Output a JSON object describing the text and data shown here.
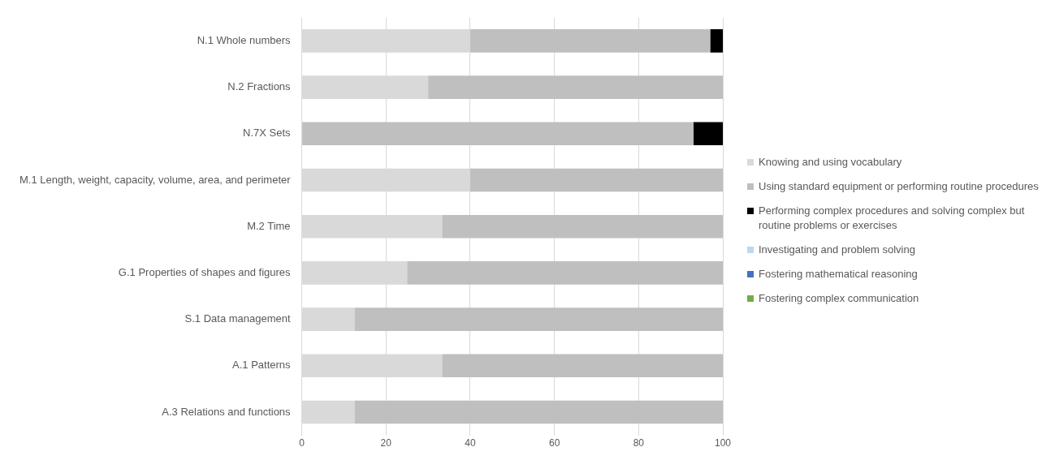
{
  "chart_data": {
    "type": "bar",
    "orientation": "horizontal",
    "stacked": true,
    "categories": [
      "N.1 Whole numbers",
      "N.2 Fractions",
      "N.7X Sets",
      "M.1 Length, weight, capacity, volume, area, and perimeter",
      "M.2 Time",
      "G.1 Properties of shapes and figures",
      "S.1 Data management",
      "A.1 Patterns",
      "A.3 Relations and functions"
    ],
    "series": [
      {
        "name": "Knowing and using vocabulary",
        "color": "#d9d9d9",
        "values": [
          40,
          30,
          0,
          40,
          33.3,
          25,
          12.5,
          33.3,
          12.5
        ]
      },
      {
        "name": "Using standard equipment or performing routine procedures",
        "color": "#bfbfbf",
        "values": [
          57,
          70,
          93,
          60,
          66.7,
          75,
          87.5,
          66.7,
          87.5
        ]
      },
      {
        "name": "Performing complex procedures and solving complex but routine problems or exercises",
        "color": "#000000",
        "values": [
          3,
          0,
          7,
          0,
          0,
          0,
          0,
          0,
          0
        ]
      },
      {
        "name": "Investigating and problem solving",
        "color": "#bdd7ee",
        "values": [
          0,
          0,
          0,
          0,
          0,
          0,
          0,
          0,
          0
        ]
      },
      {
        "name": "Fostering mathematical reasoning",
        "color": "#4472c4",
        "values": [
          0,
          0,
          0,
          0,
          0,
          0,
          0,
          0,
          0
        ]
      },
      {
        "name": "Fostering complex communication",
        "color": "#70ad47",
        "values": [
          0,
          0,
          0,
          0,
          0,
          0,
          0,
          0,
          0
        ]
      }
    ],
    "xlim": [
      0,
      100
    ],
    "xticks": [
      0,
      20,
      40,
      60,
      80,
      100
    ],
    "grid": "x",
    "legend": "right"
  }
}
